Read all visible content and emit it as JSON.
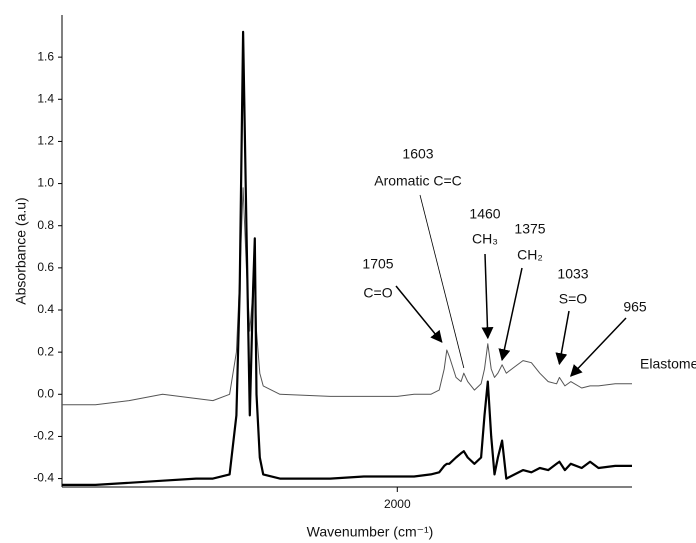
{
  "chart_data": {
    "type": "line",
    "xlabel": "Wavenumber (cm⁻¹)",
    "ylabel": "Absorbance (a.u)",
    "x": [
      4000,
      3800,
      3600,
      3400,
      3200,
      3100,
      3000,
      2960,
      2940,
      2920,
      2900,
      2880,
      2860,
      2850,
      2840,
      2820,
      2800,
      2700,
      2400,
      2200,
      2000,
      1900,
      1800,
      1750,
      1720,
      1705,
      1690,
      1650,
      1620,
      1603,
      1580,
      1540,
      1500,
      1480,
      1460,
      1440,
      1420,
      1400,
      1375,
      1350,
      1300,
      1250,
      1200,
      1150,
      1100,
      1050,
      1033,
      1000,
      965,
      900,
      850,
      800,
      700,
      600
    ],
    "series": [
      {
        "color": "#555555",
        "values": [
          -0.05,
          -0.05,
          -0.03,
          0.0,
          -0.02,
          -0.03,
          0.0,
          0.2,
          0.55,
          0.98,
          0.6,
          0.3,
          0.5,
          0.58,
          0.3,
          0.1,
          0.04,
          0.0,
          -0.01,
          -0.01,
          -0.01,
          0.0,
          0.0,
          0.02,
          0.12,
          0.21,
          0.18,
          0.08,
          0.06,
          0.1,
          0.06,
          0.02,
          0.05,
          0.12,
          0.24,
          0.12,
          0.08,
          0.1,
          0.14,
          0.1,
          0.13,
          0.16,
          0.15,
          0.1,
          0.06,
          0.05,
          0.08,
          0.04,
          0.06,
          0.03,
          0.04,
          0.04,
          0.05,
          0.05
        ]
      },
      {
        "color": "#000000",
        "values": [
          -0.43,
          -0.43,
          -0.42,
          -0.41,
          -0.4,
          -0.4,
          -0.38,
          -0.1,
          0.5,
          1.72,
          0.8,
          -0.1,
          0.5,
          0.74,
          0.0,
          -0.3,
          -0.38,
          -0.4,
          -0.4,
          -0.39,
          -0.39,
          -0.39,
          -0.38,
          -0.37,
          -0.34,
          -0.33,
          -0.33,
          -0.3,
          -0.28,
          -0.27,
          -0.3,
          -0.33,
          -0.3,
          -0.1,
          0.06,
          -0.2,
          -0.38,
          -0.3,
          -0.22,
          -0.4,
          -0.38,
          -0.36,
          -0.37,
          -0.35,
          -0.36,
          -0.33,
          -0.32,
          -0.36,
          -0.33,
          -0.35,
          -0.32,
          -0.35,
          -0.34,
          -0.34
        ]
      }
    ],
    "xlim": [
      4000,
      600
    ],
    "xticks": [
      2000
    ],
    "ylim": [
      -0.44,
      1.8
    ],
    "yticks": [
      -0.4,
      -0.2,
      {
        "value": 0,
        "label": "0.0"
      },
      0.2,
      0.4,
      0.6,
      0.8,
      {
        "value": 1,
        "label": "1.0"
      },
      1.2,
      1.4,
      1.6
    ],
    "annotations": [
      {
        "x": 1705,
        "label": "C=O"
      },
      {
        "x": 1603,
        "label": "Aromatic C=C"
      },
      {
        "x": 1460,
        "label": "CH₃"
      },
      {
        "x": 1375,
        "label": "CH₂"
      },
      {
        "x": 1033,
        "label": "S=O"
      },
      {
        "x": 965,
        "label": "Elastomer C=C"
      }
    ]
  }
}
